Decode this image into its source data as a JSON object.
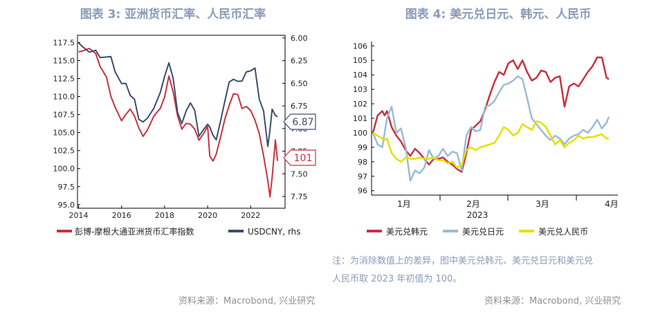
{
  "chart_data": [
    {
      "type": "line",
      "title": "图表 3: 亚洲货币汇率、人民币汇率",
      "x_ticks": [
        "2014",
        "2016",
        "2018",
        "2020",
        "2022"
      ],
      "left_axis": {
        "ticks": [
          "117.5",
          "115.0",
          "112.5",
          "110.0",
          "107.5",
          "105.0",
          "102.5",
          "100.0",
          "97.5",
          "95.0"
        ],
        "range": [
          94.5,
          118.5
        ]
      },
      "right_axis": {
        "ticks": [
          "6.00",
          "6.25",
          "6.50",
          "6.75",
          "7.00",
          "7.25",
          "7.50",
          "7.75"
        ],
        "range": [
          5.97,
          7.88
        ],
        "inverted": true
      },
      "series": [
        {
          "name": "彭博-摩根大通亚洲货币汇率指数",
          "axis": "left",
          "color": "#c8323f",
          "x": [
            2014.0,
            2014.2,
            2014.5,
            2014.8,
            2015.0,
            2015.3,
            2015.5,
            2015.7,
            2016.0,
            2016.2,
            2016.4,
            2016.6,
            2016.8,
            2017.0,
            2017.2,
            2017.5,
            2017.8,
            2018.0,
            2018.2,
            2018.4,
            2018.6,
            2018.8,
            2019.0,
            2019.2,
            2019.4,
            2019.6,
            2019.8,
            2020.0,
            2020.1,
            2020.25,
            2020.4,
            2020.6,
            2020.8,
            2021.0,
            2021.2,
            2021.4,
            2021.6,
            2021.8,
            2022.0,
            2022.2,
            2022.4,
            2022.6,
            2022.8,
            2022.9,
            2023.0,
            2023.15,
            2023.25
          ],
          "values": [
            116.2,
            116.4,
            116.6,
            116.0,
            114.2,
            112.6,
            110.1,
            108.5,
            106.6,
            107.6,
            108.2,
            107.3,
            105.7,
            104.4,
            105.4,
            107.3,
            108.3,
            110.0,
            112.8,
            110.6,
            107.4,
            105.4,
            106.3,
            106.2,
            105.4,
            104.0,
            104.8,
            105.8,
            101.8,
            101.0,
            102.0,
            104.4,
            106.8,
            108.8,
            110.4,
            110.2,
            108.4,
            108.6,
            108.0,
            106.8,
            104.8,
            101.8,
            98.4,
            96.0,
            98.8,
            104.0,
            101.0
          ]
        },
        {
          "name": "USDCNY, rhs",
          "axis": "right",
          "color": "#3c4d6b",
          "x": [
            2014.0,
            2014.2,
            2014.5,
            2014.8,
            2015.0,
            2015.3,
            2015.5,
            2015.7,
            2016.0,
            2016.2,
            2016.4,
            2016.6,
            2016.8,
            2017.0,
            2017.2,
            2017.5,
            2017.8,
            2018.0,
            2018.2,
            2018.4,
            2018.6,
            2018.8,
            2019.0,
            2019.2,
            2019.4,
            2019.6,
            2019.8,
            2020.0,
            2020.1,
            2020.25,
            2020.4,
            2020.6,
            2020.8,
            2021.0,
            2021.2,
            2021.4,
            2021.6,
            2021.8,
            2022.0,
            2022.2,
            2022.4,
            2022.6,
            2022.8,
            2022.9,
            2023.0,
            2023.15,
            2023.25
          ],
          "values": [
            6.05,
            6.1,
            6.16,
            6.13,
            6.22,
            6.21,
            6.2,
            6.38,
            6.5,
            6.5,
            6.64,
            6.67,
            6.9,
            6.93,
            6.88,
            6.78,
            6.6,
            6.42,
            6.28,
            6.44,
            6.82,
            6.95,
            6.8,
            6.72,
            6.8,
            7.08,
            7.02,
            6.95,
            6.98,
            7.08,
            7.12,
            6.92,
            6.7,
            6.48,
            6.46,
            6.48,
            6.47,
            6.38,
            6.36,
            6.33,
            6.68,
            6.8,
            7.2,
            7.02,
            6.78,
            6.86,
            6.87
          ]
        }
      ],
      "callouts": [
        {
          "label": "6.87",
          "color": "#3c4d6b"
        },
        {
          "label": "101",
          "color": "#c8323f"
        }
      ]
    },
    {
      "type": "line",
      "title": "图表 4: 美元兑日元、韩元、人民币",
      "x_ticks": [
        "1月",
        "2月",
        "3月",
        "4月"
      ],
      "x_sublabel": "2023",
      "y_axis": {
        "ticks": [
          "106",
          "105",
          "104",
          "103",
          "102",
          "101",
          "100",
          "99",
          "98",
          "97",
          "96"
        ],
        "range": [
          95.7,
          106.3
        ]
      },
      "series": [
        {
          "name": "美元兑韩元",
          "color": "#c8323f",
          "x": [
            0,
            2,
            4,
            5,
            6,
            8,
            10,
            12,
            14,
            16,
            18,
            20,
            22,
            24,
            26,
            28,
            30,
            32,
            34,
            36,
            38,
            40,
            42,
            44,
            46,
            48,
            50,
            52,
            54,
            56,
            58,
            60,
            62,
            64,
            66,
            68,
            70,
            72,
            74,
            76,
            78,
            80,
            82,
            84,
            86,
            88,
            90,
            92,
            94,
            96,
            98,
            100,
            101
          ],
          "values": [
            100.0,
            101.2,
            101.5,
            101.2,
            101.5,
            100.4,
            99.8,
            99.4,
            98.8,
            98.4,
            98.9,
            98.6,
            98.2,
            97.8,
            98.2,
            98.2,
            98.3,
            98.0,
            97.8,
            97.5,
            97.3,
            98.6,
            100.2,
            100.5,
            100.8,
            101.6,
            102.6,
            103.5,
            104.2,
            104.0,
            104.8,
            105.0,
            104.4,
            105.0,
            104.2,
            103.6,
            103.8,
            104.3,
            104.2,
            103.5,
            103.8,
            103.9,
            101.8,
            103.2,
            103.4,
            103.2,
            103.7,
            104.2,
            104.6,
            105.2,
            105.2,
            103.8,
            103.7
          ]
        },
        {
          "name": "美元兑日元",
          "color": "#9bbbd6",
          "x": [
            0,
            2,
            4,
            5,
            6,
            8,
            10,
            12,
            14,
            16,
            18,
            20,
            22,
            24,
            26,
            28,
            30,
            32,
            34,
            36,
            38,
            40,
            42,
            44,
            46,
            48,
            50,
            52,
            54,
            56,
            58,
            60,
            62,
            64,
            66,
            68,
            70,
            72,
            74,
            76,
            78,
            80,
            82,
            84,
            86,
            88,
            90,
            92,
            94,
            96,
            98,
            100,
            101
          ],
          "values": [
            100.0,
            99.2,
            99.0,
            100.0,
            101.0,
            101.8,
            100.0,
            100.3,
            99.0,
            96.7,
            97.4,
            97.2,
            97.6,
            98.8,
            98.2,
            98.4,
            98.9,
            98.4,
            98.7,
            98.6,
            97.4,
            99.8,
            100.4,
            100.1,
            100.2,
            101.8,
            101.9,
            102.2,
            102.8,
            103.3,
            103.4,
            103.6,
            103.9,
            103.7,
            102.4,
            101.0,
            100.6,
            100.2,
            99.8,
            99.5,
            99.8,
            99.6,
            99.2,
            99.6,
            99.8,
            99.9,
            100.2,
            100.0,
            100.4,
            100.9,
            100.3,
            100.7,
            101.1
          ]
        },
        {
          "name": "美元兑人民币",
          "color": "#e4e000",
          "x": [
            0,
            2,
            4,
            5,
            6,
            8,
            10,
            12,
            14,
            16,
            18,
            20,
            22,
            24,
            26,
            28,
            30,
            32,
            34,
            36,
            38,
            40,
            42,
            44,
            46,
            48,
            50,
            52,
            54,
            56,
            58,
            60,
            62,
            64,
            66,
            68,
            70,
            72,
            74,
            76,
            78,
            80,
            82,
            84,
            86,
            88,
            90,
            92,
            94,
            96,
            98,
            100,
            101
          ],
          "values": [
            100.0,
            99.8,
            99.6,
            99.5,
            99.6,
            98.6,
            98.2,
            98.0,
            98.3,
            98.2,
            98.2,
            98.3,
            98.2,
            98.2,
            98.3,
            98.1,
            98.1,
            97.9,
            98.0,
            97.6,
            97.8,
            98.8,
            99.0,
            98.8,
            99.0,
            99.1,
            99.2,
            99.3,
            99.8,
            100.4,
            100.2,
            99.8,
            100.0,
            100.6,
            100.4,
            100.2,
            100.8,
            100.7,
            100.4,
            99.8,
            99.2,
            99.5,
            99.0,
            99.3,
            99.5,
            99.8,
            99.6,
            99.7,
            99.7,
            99.8,
            99.9,
            99.6,
            99.6
          ]
        }
      ]
    }
  ],
  "note": {
    "line1": "注：为消除数值上的差异，图中美元兑韩元、美元兑日元和美元兑",
    "line2": "人民币取 2023 年初值为 100。"
  },
  "source_left": "资料来源：Macrobond, 兴业研究",
  "source_right": "资料来源：Macrobond, 兴业研究"
}
